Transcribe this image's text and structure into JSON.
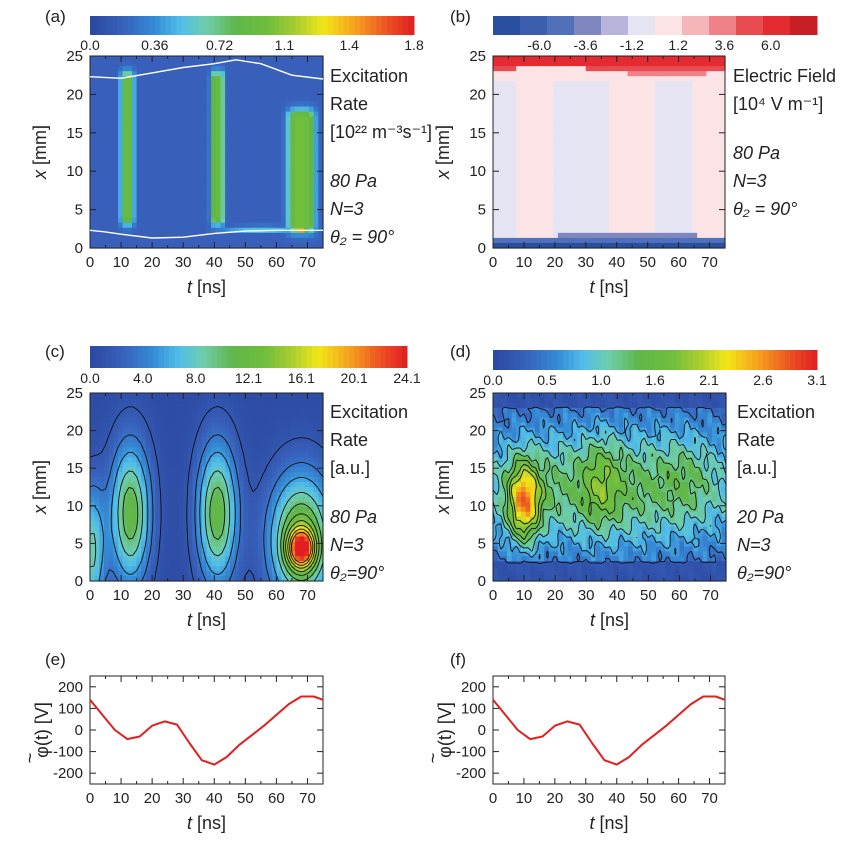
{
  "chart_data": [
    {
      "panel": "(a)",
      "type": "heatmap",
      "xlabel_var": "t",
      "xlabel_unit": " [ns]",
      "ylabel_var": "x",
      "ylabel_unit": " [mm]",
      "xlim": [
        0,
        75
      ],
      "ylim": [
        0,
        25
      ],
      "xticks": [
        "0",
        "10",
        "20",
        "30",
        "40",
        "50",
        "60",
        "70"
      ],
      "yticks": [
        "0",
        "5",
        "10",
        "15",
        "20",
        "25"
      ],
      "colorbar": {
        "min": 0.0,
        "max": 1.8,
        "labels": [
          "0.0",
          "0.36",
          "0.72",
          "1.1",
          "1.4",
          "1.8"
        ],
        "style": "jet"
      },
      "side_text": [
        {
          "text": "Excitation",
          "italic": false
        },
        {
          "text": "Rate",
          "italic": false
        },
        {
          "text": "[10²² m⁻³s⁻¹]",
          "italic": false
        },
        {
          "text": "80 Pa",
          "italic": true
        },
        {
          "text": "N=3",
          "italic": true
        },
        {
          "text": "θ₂ = 90°",
          "italic": true
        }
      ],
      "sheath_edges": [
        {
          "t": [
            0,
            10,
            20,
            30,
            40,
            47,
            55,
            65,
            75
          ],
          "x": [
            22.3,
            22.1,
            22.8,
            23.5,
            24.0,
            24.5,
            24.0,
            22.5,
            22.0
          ]
        },
        {
          "t": [
            0,
            5,
            10,
            20,
            30,
            40,
            50,
            60,
            68,
            75
          ],
          "x": [
            2.3,
            2.1,
            1.8,
            1.3,
            1.4,
            1.9,
            2.2,
            2.3,
            2.3,
            2.3
          ]
        }
      ],
      "features": [
        {
          "t": 12,
          "x0": 4,
          "x1": 22,
          "width": 4.5,
          "value": 0.9
        },
        {
          "t": 41,
          "x0": 4,
          "x1": 22,
          "width": 4.5,
          "value": 0.9
        },
        {
          "t": 68,
          "x0": 3,
          "x1": 17,
          "width": 9,
          "value": 1.0
        },
        {
          "t": 68,
          "x0": 2.2,
          "x1": 2.8,
          "width": 3,
          "value": 1.75
        }
      ]
    },
    {
      "panel": "(b)",
      "type": "heatmap",
      "xlabel_var": "t",
      "xlabel_unit": " [ns]",
      "ylabel_var": "x",
      "ylabel_unit": " [mm]",
      "xlim": [
        0,
        75
      ],
      "ylim": [
        0,
        25
      ],
      "xticks": [
        "0",
        "10",
        "20",
        "30",
        "40",
        "50",
        "60",
        "70"
      ],
      "yticks": [
        "0",
        "5",
        "10",
        "15",
        "20",
        "25"
      ],
      "colorbar": {
        "min": -8.4,
        "max": 8.4,
        "labels": [
          "-6.0",
          "-3.6",
          "-1.2",
          "1.2",
          "3.6",
          "6.0"
        ],
        "style": "diverging",
        "steps": [
          "#2b4fa0",
          "#3b5fae",
          "#5070b8",
          "#7f86c0",
          "#b6b4da",
          "#e4e4f2",
          "#fce4e6",
          "#f6b5b9",
          "#ef8289",
          "#e84b52",
          "#e32b30",
          "#c81e26"
        ]
      },
      "side_text": [
        {
          "text": "Electric Field",
          "italic": false
        },
        {
          "text": "[10⁴ V m⁻¹]",
          "italic": false
        },
        {
          "text": "80 Pa",
          "italic": true
        },
        {
          "text": "N=3",
          "italic": true
        },
        {
          "text": "θ₂ = 90°",
          "italic": true
        }
      ]
    },
    {
      "panel": "(c)",
      "type": "heatmap",
      "xlabel_var": "t",
      "xlabel_unit": " [ns]",
      "ylabel_var": "x",
      "ylabel_unit": " [mm]",
      "xlim": [
        0,
        75
      ],
      "ylim": [
        0,
        25
      ],
      "xticks": [
        "0",
        "10",
        "20",
        "30",
        "40",
        "50",
        "60",
        "70"
      ],
      "yticks": [
        "0",
        "5",
        "10",
        "15",
        "20",
        "25"
      ],
      "colorbar": {
        "min": 0.0,
        "max": 24.1,
        "labels": [
          "0.0",
          "4.0",
          "8.0",
          "12.1",
          "16.1",
          "20.1",
          "24.1"
        ],
        "style": "jet"
      },
      "side_text": [
        {
          "text": "Excitation",
          "italic": false
        },
        {
          "text": "Rate",
          "italic": false
        },
        {
          "text": "[a.u.]",
          "italic": false
        },
        {
          "text": "80 Pa",
          "italic": true
        },
        {
          "text": "N=3",
          "italic": true
        },
        {
          "text": "θ₂=90°",
          "italic": true
        }
      ],
      "blobs": [
        {
          "t": 13,
          "x": 9,
          "st": 4.5,
          "sx": 6.5,
          "value": 11
        },
        {
          "t": 0.5,
          "x": 4,
          "st": 3,
          "sx": 6,
          "value": 8
        },
        {
          "t": 41,
          "x": 9,
          "st": 4.5,
          "sx": 6.5,
          "value": 11
        },
        {
          "t": 68,
          "x": 5.5,
          "st": 7,
          "sx": 6,
          "value": 13
        },
        {
          "t": 68,
          "x": 4.3,
          "st": 3,
          "sx": 1.8,
          "value": 14
        }
      ]
    },
    {
      "panel": "(d)",
      "type": "heatmap",
      "xlabel_var": "t",
      "xlabel_unit": " [ns]",
      "ylabel_var": "x",
      "ylabel_unit": " [mm]",
      "xlim": [
        0,
        75
      ],
      "ylim": [
        0,
        25
      ],
      "xticks": [
        "0",
        "10",
        "20",
        "30",
        "40",
        "50",
        "60",
        "70"
      ],
      "yticks": [
        "0",
        "5",
        "10",
        "15",
        "20",
        "25"
      ],
      "colorbar": {
        "min": 0.0,
        "max": 3.1,
        "labels": [
          "0.0",
          "0.5",
          "1.0",
          "1.6",
          "2.1",
          "2.6",
          "3.1"
        ],
        "style": "jet"
      },
      "side_text": [
        {
          "text": "Excitation",
          "italic": false
        },
        {
          "text": "Rate",
          "italic": false
        },
        {
          "text": "[a.u.]",
          "italic": false
        },
        {
          "text": "20 Pa",
          "italic": true
        },
        {
          "text": "N=3",
          "italic": true
        },
        {
          "text": "θ₂=90°",
          "italic": true
        }
      ],
      "blobs": [
        {
          "t": 37,
          "x": 12.5,
          "st": 40,
          "sx": 6,
          "value": 1.1
        },
        {
          "t": 10,
          "x": 10.5,
          "st": 3.5,
          "sx": 3.5,
          "value": 1.7
        },
        {
          "t": 35,
          "x": 13,
          "st": 4,
          "sx": 4,
          "value": 0.5
        },
        {
          "t": 62,
          "x": 14,
          "st": 6,
          "sx": 4,
          "value": 0.25
        }
      ]
    },
    {
      "panel": "(e)",
      "type": "line",
      "xlabel_var": "t",
      "xlabel_unit": " [ns]",
      "ylabel": "φ(t) [V]",
      "ylabel_tilde": "~",
      "xlim": [
        0,
        75
      ],
      "ylim": [
        -250,
        250
      ],
      "xticks": [
        "0",
        "10",
        "20",
        "30",
        "40",
        "50",
        "60",
        "70"
      ],
      "yticks": [
        "-200",
        "-100",
        "0",
        "100",
        "200"
      ],
      "series": [
        {
          "color": "#e02020",
          "x": [
            0,
            4,
            8,
            12,
            16,
            20,
            24,
            28,
            32,
            36,
            40,
            44,
            48,
            52,
            56,
            60,
            64,
            68,
            72,
            75
          ],
          "y": [
            140,
            70,
            0,
            -42,
            -30,
            20,
            40,
            25,
            -60,
            -140,
            -160,
            -125,
            -70,
            -25,
            20,
            70,
            120,
            155,
            155,
            140
          ]
        }
      ]
    },
    {
      "panel": "(f)",
      "type": "line",
      "xlabel_var": "t",
      "xlabel_unit": " [ns]",
      "ylabel": "φ(t) [V]",
      "ylabel_tilde": "~",
      "xlim": [
        0,
        75
      ],
      "ylim": [
        -250,
        250
      ],
      "xticks": [
        "0",
        "10",
        "20",
        "30",
        "40",
        "50",
        "60",
        "70"
      ],
      "yticks": [
        "-200",
        "-100",
        "0",
        "100",
        "200"
      ],
      "series": [
        {
          "color": "#e02020",
          "x": [
            0,
            4,
            8,
            12,
            16,
            20,
            24,
            28,
            32,
            36,
            40,
            44,
            48,
            52,
            56,
            60,
            64,
            68,
            72,
            75
          ],
          "y": [
            140,
            70,
            0,
            -42,
            -30,
            20,
            40,
            25,
            -60,
            -140,
            -160,
            -125,
            -70,
            -25,
            20,
            70,
            120,
            155,
            155,
            140
          ]
        }
      ]
    }
  ]
}
